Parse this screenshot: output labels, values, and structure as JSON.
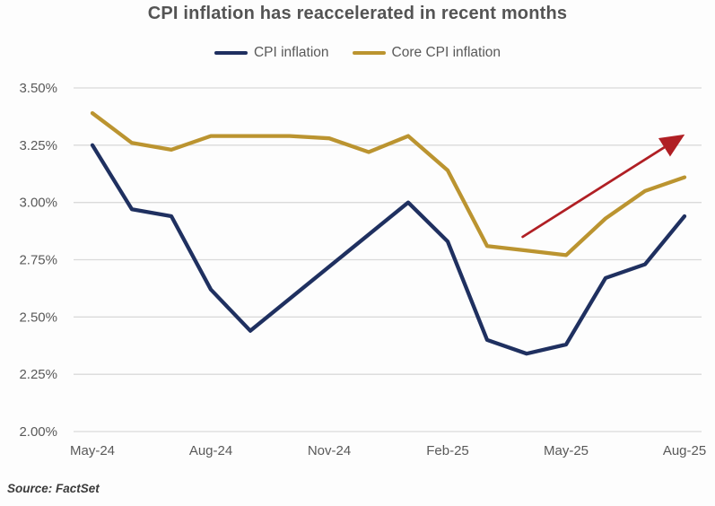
{
  "title": "CPI inflation has reaccelerated in recent months",
  "source": "Source: FactSet",
  "legend": [
    {
      "label": "CPI inflation",
      "color": "#1f3060"
    },
    {
      "label": "Core CPI inflation",
      "color": "#bb9430"
    }
  ],
  "colors": {
    "cpi_line": "#1f3060",
    "core_cpi_line": "#bb9430",
    "arrow": "#b01f24",
    "gridline": "#dadada",
    "axis_text": "#595959",
    "title_text": "#545454",
    "source_text": "#3a3a3a"
  },
  "chart_data": {
    "type": "line",
    "title": "CPI inflation has reaccelerated in recent months",
    "categories": [
      "May-24",
      "Jun-24",
      "Jul-24",
      "Aug-24",
      "Sep-24",
      "Oct-24",
      "Nov-24",
      "Dec-24",
      "Jan-25",
      "Feb-25",
      "Mar-25",
      "Apr-25",
      "May-25",
      "Jun-25",
      "Jul-25",
      "Aug-25"
    ],
    "series": [
      {
        "name": "CPI inflation",
        "color": "#1f3060",
        "values": [
          3.25,
          2.97,
          2.94,
          2.62,
          2.44,
          2.58,
          2.72,
          2.86,
          3.0,
          2.83,
          2.4,
          2.34,
          2.38,
          2.67,
          2.73,
          2.94
        ]
      },
      {
        "name": "Core CPI inflation",
        "color": "#bb9430",
        "values": [
          3.39,
          3.26,
          3.23,
          3.29,
          3.29,
          3.29,
          3.28,
          3.22,
          3.29,
          3.14,
          2.81,
          2.79,
          2.77,
          2.93,
          3.05,
          3.11
        ]
      }
    ],
    "ylabel": "",
    "xlabel": "",
    "ylim": [
      2.0,
      3.5
    ],
    "y_tick_values": [
      3.5,
      3.25,
      3.0,
      2.75,
      2.5,
      2.25,
      2.0
    ],
    "y_tick_labels": [
      "3.50%",
      "3.25%",
      "3.00%",
      "2.75%",
      "2.50%",
      "2.25%",
      "2.00%"
    ],
    "x_tick_indices": [
      0,
      3,
      6,
      9,
      12,
      15
    ],
    "x_tick_labels": [
      "May-24",
      "Aug-24",
      "Nov-24",
      "Feb-25",
      "May-25",
      "Aug-25"
    ],
    "grid": true,
    "legend_position": "top-center",
    "annotation": {
      "type": "arrow",
      "color": "#b01f24",
      "from": {
        "index": 10.9,
        "value": 2.85
      },
      "to": {
        "index": 14.85,
        "value": 3.28
      }
    }
  }
}
